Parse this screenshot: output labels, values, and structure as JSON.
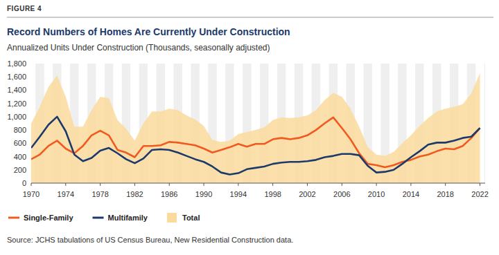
{
  "chart_data": {
    "type": "line",
    "figure_label": "FIGURE 4",
    "title": "Record Numbers of Homes Are Currently Under Construction",
    "subtitle": "Annualized Units Under Construction (Thousands, seasonally adjusted)",
    "source": "Source: JCHS tabulations of US Census Bureau, New Residential Construction data.",
    "x": [
      1970,
      1971,
      1972,
      1973,
      1974,
      1975,
      1976,
      1977,
      1978,
      1979,
      1980,
      1981,
      1982,
      1983,
      1984,
      1985,
      1986,
      1987,
      1988,
      1989,
      1990,
      1991,
      1992,
      1993,
      1994,
      1995,
      1996,
      1997,
      1998,
      1999,
      2000,
      2001,
      2002,
      2003,
      2004,
      2005,
      2006,
      2007,
      2008,
      2009,
      2010,
      2011,
      2012,
      2013,
      2014,
      2015,
      2016,
      2017,
      2018,
      2019,
      2020,
      2021,
      2022
    ],
    "series": [
      {
        "name": "Single-Family",
        "color": "#f05a1e",
        "type": "line",
        "values": [
          360,
          430,
          560,
          640,
          520,
          450,
          560,
          720,
          790,
          720,
          500,
          460,
          390,
          560,
          560,
          570,
          620,
          610,
          590,
          570,
          520,
          460,
          500,
          540,
          590,
          550,
          590,
          590,
          660,
          680,
          660,
          680,
          720,
          800,
          900,
          990,
          830,
          660,
          450,
          290,
          270,
          240,
          270,
          320,
          350,
          400,
          430,
          480,
          520,
          510,
          560,
          680,
          830
        ]
      },
      {
        "name": "Multifamily",
        "color": "#1b3a6b",
        "type": "line",
        "values": [
          530,
          700,
          880,
          1000,
          780,
          430,
          330,
          380,
          490,
          530,
          450,
          360,
          300,
          370,
          500,
          510,
          500,
          460,
          410,
          360,
          320,
          250,
          160,
          130,
          150,
          210,
          230,
          250,
          290,
          310,
          320,
          320,
          330,
          350,
          390,
          410,
          440,
          440,
          420,
          260,
          160,
          170,
          200,
          290,
          390,
          480,
          580,
          610,
          610,
          640,
          680,
          700,
          830
        ]
      },
      {
        "name": "Total",
        "color": "#fbdb9c",
        "type": "area",
        "values": [
          900,
          1150,
          1450,
          1620,
          1300,
          850,
          850,
          1100,
          1300,
          1280,
          950,
          820,
          640,
          900,
          1080,
          1080,
          1120,
          1100,
          1020,
          960,
          860,
          650,
          620,
          640,
          740,
          770,
          800,
          840,
          950,
          990,
          980,
          990,
          1020,
          1100,
          1250,
          1360,
          1300,
          1120,
          850,
          540,
          430,
          410,
          470,
          600,
          720,
          860,
          980,
          1080,
          1120,
          1150,
          1190,
          1350,
          1660
        ]
      }
    ],
    "xlim": [
      1970,
      2022.6
    ],
    "xticks": [
      1970,
      1974,
      1978,
      1982,
      1986,
      1990,
      1994,
      1998,
      2002,
      2006,
      2010,
      2014,
      2018,
      2022
    ],
    "ylim": [
      0,
      1800
    ],
    "yticks": [
      0,
      200,
      400,
      600,
      800,
      {
        "value": 1000,
        "label": "1,000"
      },
      {
        "value": 1200,
        "label": "1,200"
      },
      {
        "value": 1400,
        "label": "1,400"
      },
      {
        "value": 1600,
        "label": "1,600"
      },
      {
        "value": 1800,
        "label": "1,800"
      }
    ],
    "grid": false,
    "legend": "bottom"
  }
}
